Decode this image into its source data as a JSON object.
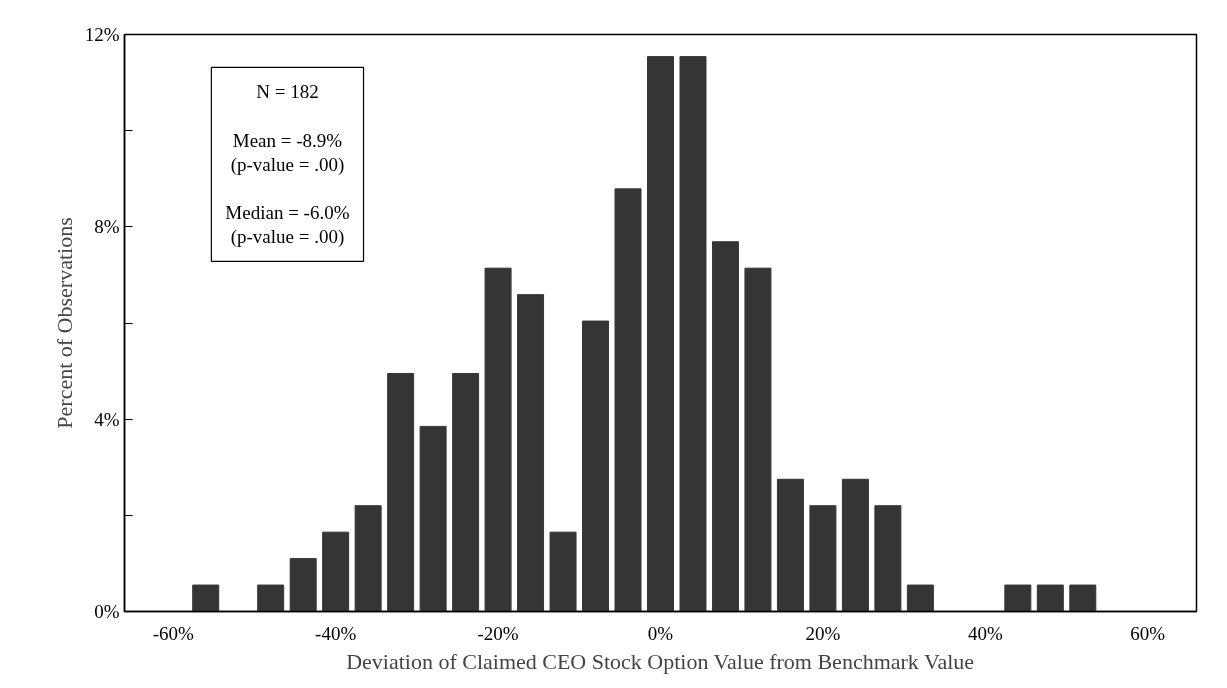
{
  "chart_data": {
    "type": "histogram",
    "xlabel": "Deviation of Claimed CEO Stock Option Value from Benchmark Value",
    "ylabel": "Percent of Observations",
    "bins": [
      -58,
      -54,
      -50,
      -46,
      -42,
      -38,
      -34,
      -30,
      -26,
      -22,
      -18,
      -14,
      -10,
      -6,
      -2,
      2,
      6,
      10,
      14,
      18,
      22,
      26,
      30,
      34,
      38,
      42,
      46,
      50,
      54
    ],
    "values": [
      0.55,
      0,
      0.55,
      1.1,
      1.65,
      2.2,
      4.95,
      3.85,
      4.95,
      7.14,
      6.59,
      1.65,
      6.04,
      8.79,
      11.54,
      11.54,
      7.69,
      7.14,
      2.75,
      2.2,
      2.75,
      2.2,
      0.55,
      0,
      0,
      0.55,
      0.55,
      0.55
    ],
    "color": "#353535",
    "xlim": [
      -66,
      66
    ],
    "xticks": [
      {
        "value": -60,
        "label": "-60%"
      },
      {
        "value": -40,
        "label": "-40%"
      },
      {
        "value": -20,
        "label": "-20%"
      },
      {
        "value": 0,
        "label": "0%"
      },
      {
        "value": 20,
        "label": "20%"
      },
      {
        "value": 40,
        "label": "40%"
      },
      {
        "value": 60,
        "label": "60%"
      }
    ],
    "ylim": [
      0,
      12
    ],
    "yticks": [
      {
        "value": 0,
        "label": "0%"
      },
      {
        "value": 2,
        "label": null
      },
      {
        "value": 4,
        "label": "4%"
      },
      {
        "value": 6,
        "label": null
      },
      {
        "value": 8,
        "label": "8%"
      },
      {
        "value": 10,
        "label": null
      },
      {
        "value": 12,
        "label": "12%"
      }
    ],
    "annotations": [
      "N = 182",
      "Mean = -8.9%",
      "(p-value = .00)",
      "Median = -6.0%",
      "(p-value = .00)"
    ],
    "grid": false
  }
}
